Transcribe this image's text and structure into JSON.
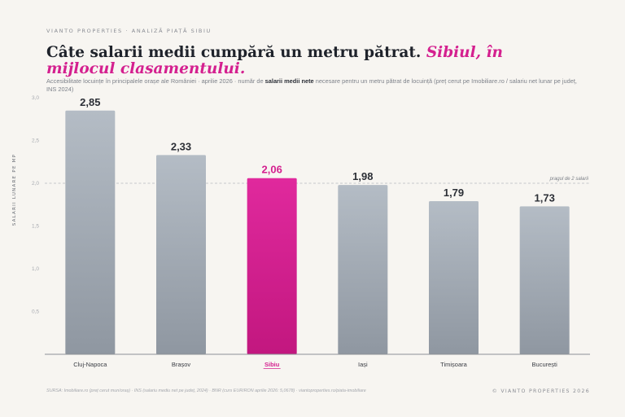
{
  "header": {
    "brand": "VIANTO PROPERTIES · ANALIZĂ PIAȚĂ SIBIU",
    "title_main": "Câte salarii medii cumpără un metru pătrat.",
    "title_highlight": "Sibiul, în mijlocul clasamentului.",
    "subtitle_pre": "Accesibilitate locuințe în principalele orașe ale României · aprilie 2026 · număr de ",
    "subtitle_bold": "salarii medii nete",
    "subtitle_post": " necesare pentru un metru pătrat de locuință (preț cerut pe Imobiliare.ro / salariu net lunar pe județ, INS 2024)"
  },
  "chart_data": {
    "type": "bar",
    "categories": [
      "Cluj-Napoca",
      "Brașov",
      "Sibiu",
      "Iași",
      "Timișoara",
      "București"
    ],
    "values": [
      2.85,
      2.33,
      2.06,
      1.98,
      1.79,
      1.73
    ],
    "value_labels": [
      "2,85",
      "2,33",
      "2,06",
      "1,98",
      "1,79",
      "1,73"
    ],
    "ylabel": "SALARII LUNARE PE MP",
    "ylim": [
      0,
      3.0
    ],
    "yticks": [
      0.5,
      1.0,
      1.5,
      2.0,
      2.5,
      3.0
    ],
    "ytick_labels": [
      "0,5",
      "1,0",
      "1,5",
      "2,0",
      "2,5",
      "3,0"
    ],
    "reference_line": {
      "value": 2.0,
      "label": "pragul de 2 salarii"
    },
    "highlight_category": "Sibiu",
    "grid": false,
    "colors": {
      "bar": "#b4bcc5",
      "bar_dark": "#8f97a1",
      "highlight": "#e0299d",
      "highlight_dark": "#c2177f",
      "highlight_text": "#d4208f",
      "axis": "#8e9197",
      "value_text": "#2c2f36",
      "tick": "#a7aab0",
      "cat_text": "#3a3d44"
    }
  },
  "footer": {
    "source": "SURSA: Imobiliare.ro (preț cerut mun/oraș) · INS (salariu mediu net pe județ, 2024) · BNR (curs EUR/RON aprilie 2026: 5,0678) · viantoproperties.ro/piata-imobiliare",
    "copyright": "© VIANTO PROPERTIES 2026"
  }
}
